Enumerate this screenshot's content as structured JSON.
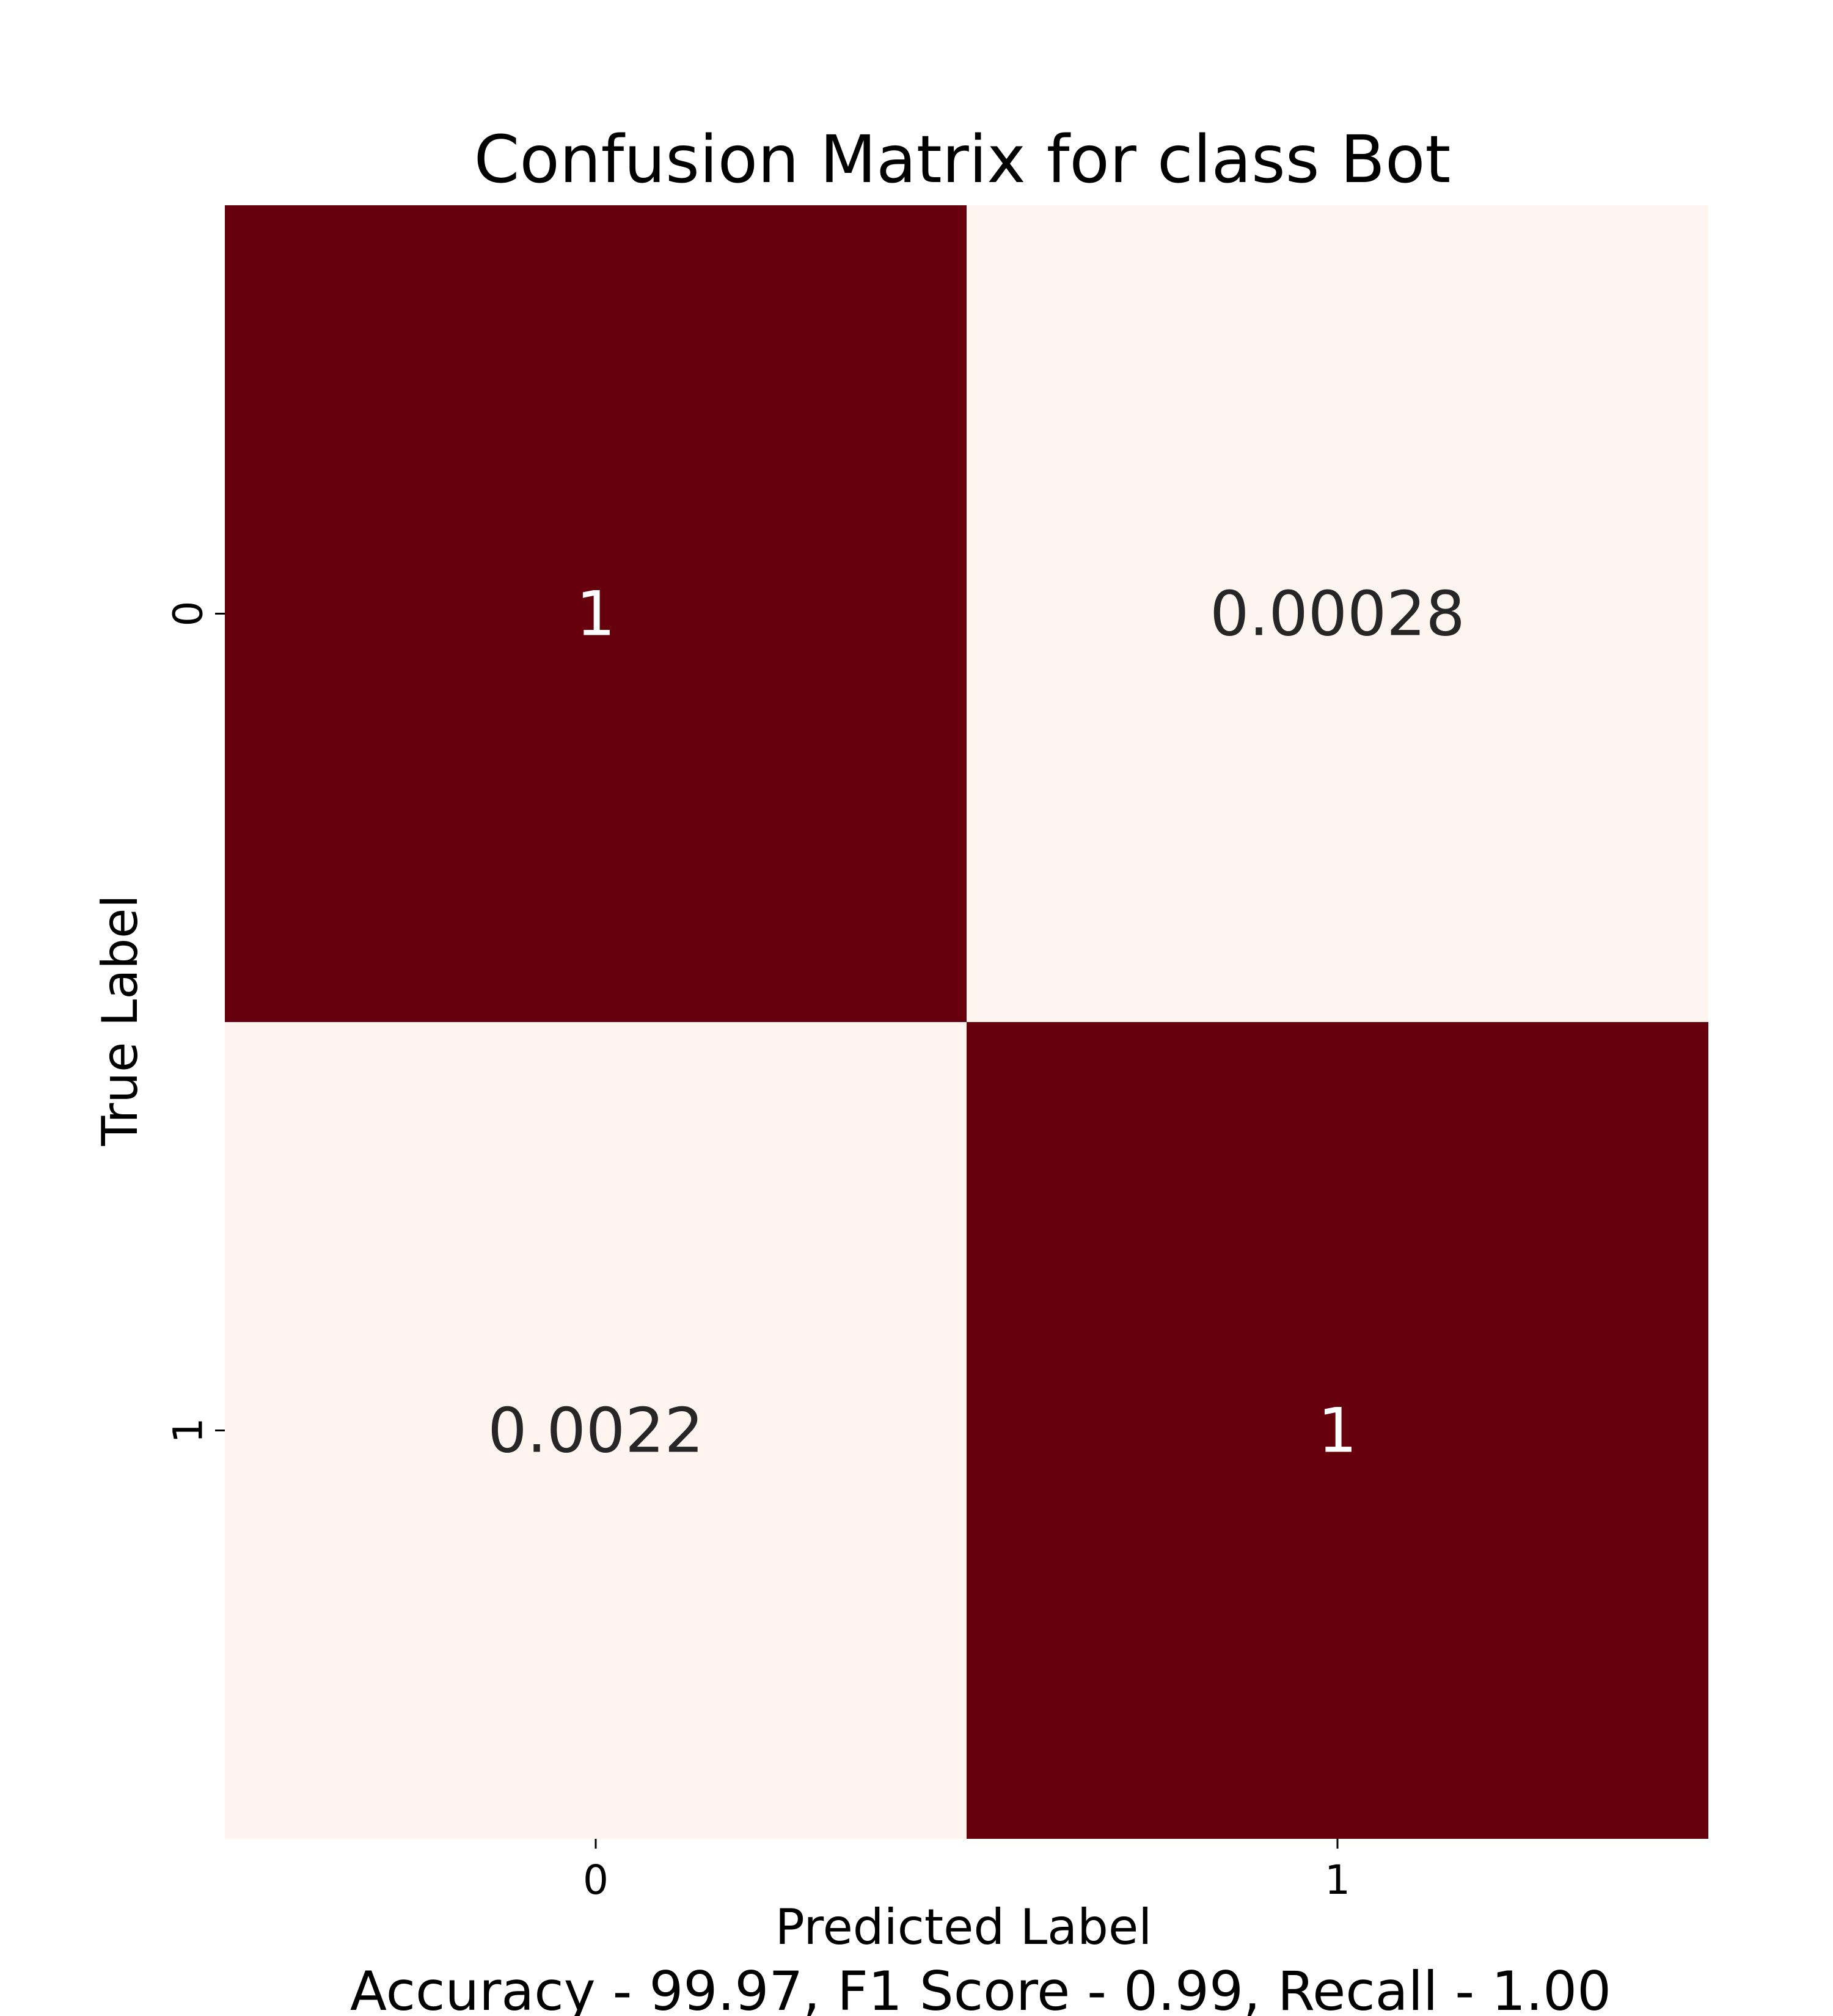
{
  "chart_data": {
    "type": "heatmap",
    "title": "Confusion Matrix for class Bot",
    "xlabel": "Predicted Label",
    "ylabel": "True Label",
    "x_categories": [
      "0",
      "1"
    ],
    "y_categories": [
      "0",
      "1"
    ],
    "values": [
      [
        1,
        0.00028
      ],
      [
        0.0022,
        1
      ]
    ],
    "cell_labels": [
      [
        "1",
        "0.00028"
      ],
      [
        "0.0022",
        "1"
      ]
    ],
    "color_range": [
      0,
      1
    ],
    "colors": {
      "low": "#fff5f0",
      "high": "#67000d",
      "text_on_dark": "#ffffff",
      "text_on_light": "#262626"
    },
    "footer": "Accuracy - 99.97, F1 Score - 0.99, Recall - 1.00"
  }
}
